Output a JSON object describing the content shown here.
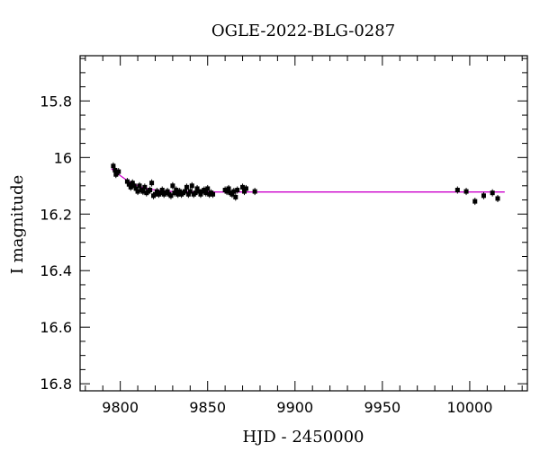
{
  "chart_data": {
    "type": "scatter",
    "title": "OGLE-2022-BLG-0287",
    "xlabel": "HJD - 2450000",
    "ylabel": "I magnitude",
    "xlim": [
      9777,
      10033
    ],
    "ylim": [
      15.64,
      16.825
    ],
    "y_inverted": true,
    "grid": false,
    "x_ticks_major": [
      9800,
      9850,
      9900,
      9950,
      10000
    ],
    "x_ticks_minor_step": 10,
    "y_ticks_major": [
      15.8,
      16,
      16.2,
      16.4,
      16.6,
      16.8
    ],
    "y_ticks_minor_step": 0.05,
    "x_tick_labels": [
      "9800",
      "9850",
      "9900",
      "9950",
      "10000"
    ],
    "y_tick_labels": [
      "15.8",
      "16",
      "16.2",
      "16.4",
      "16.6",
      "16.8"
    ],
    "colors": {
      "points": "#000000",
      "model": "#cc00cc"
    },
    "series": [
      {
        "kind": "points",
        "x": [
          9796,
          9797,
          9798,
          9799,
          9797.5,
          9804,
          9805,
          9806,
          9807,
          9808,
          9809,
          9810,
          9811,
          9812,
          9813,
          9814,
          9815,
          9816,
          9817,
          9818,
          9819,
          9820,
          9821,
          9822,
          9823,
          9824,
          9825,
          9826,
          9827,
          9828,
          9829,
          9830,
          9831,
          9832,
          9833,
          9834,
          9835,
          9836,
          9837,
          9838,
          9839,
          9840,
          9841,
          9842,
          9843,
          9844,
          9845,
          9846,
          9847,
          9848,
          9849,
          9850,
          9851,
          9852,
          9853,
          9860,
          9861,
          9862,
          9863,
          9864,
          9865,
          9866,
          9867,
          9870,
          9871,
          9872,
          9877,
          9993,
          9998,
          10003,
          10008,
          10013,
          10016
        ],
        "y": [
          16.03,
          16.045,
          16.055,
          16.05,
          16.06,
          16.085,
          16.095,
          16.105,
          16.09,
          16.1,
          16.11,
          16.12,
          16.1,
          16.115,
          16.12,
          16.105,
          16.125,
          16.12,
          16.115,
          16.09,
          16.135,
          16.13,
          16.12,
          16.13,
          16.125,
          16.115,
          16.13,
          16.125,
          16.12,
          16.13,
          16.135,
          16.1,
          16.125,
          16.115,
          16.13,
          16.12,
          16.13,
          16.125,
          16.12,
          16.105,
          16.13,
          16.12,
          16.1,
          16.13,
          16.125,
          16.11,
          16.12,
          16.13,
          16.12,
          16.115,
          16.125,
          16.11,
          16.13,
          16.125,
          16.13,
          16.115,
          16.12,
          16.11,
          16.125,
          16.13,
          16.12,
          16.14,
          16.115,
          16.105,
          16.12,
          16.11,
          16.12,
          16.115,
          16.12,
          16.155,
          16.135,
          16.125,
          16.145
        ]
      },
      {
        "kind": "model",
        "x": [
          9795,
          9797,
          9800,
          9803,
          9806,
          9809,
          9812,
          9815,
          9818,
          9821,
          9825,
          9830,
          9836,
          9845,
          9860,
          9880,
          9920,
          9980,
          10020
        ],
        "y": [
          16.04,
          16.05,
          16.064,
          16.077,
          16.088,
          16.097,
          16.104,
          16.109,
          16.113,
          16.116,
          16.118,
          16.12,
          16.121,
          16.122,
          16.122,
          16.122,
          16.122,
          16.122,
          16.122
        ]
      }
    ]
  }
}
